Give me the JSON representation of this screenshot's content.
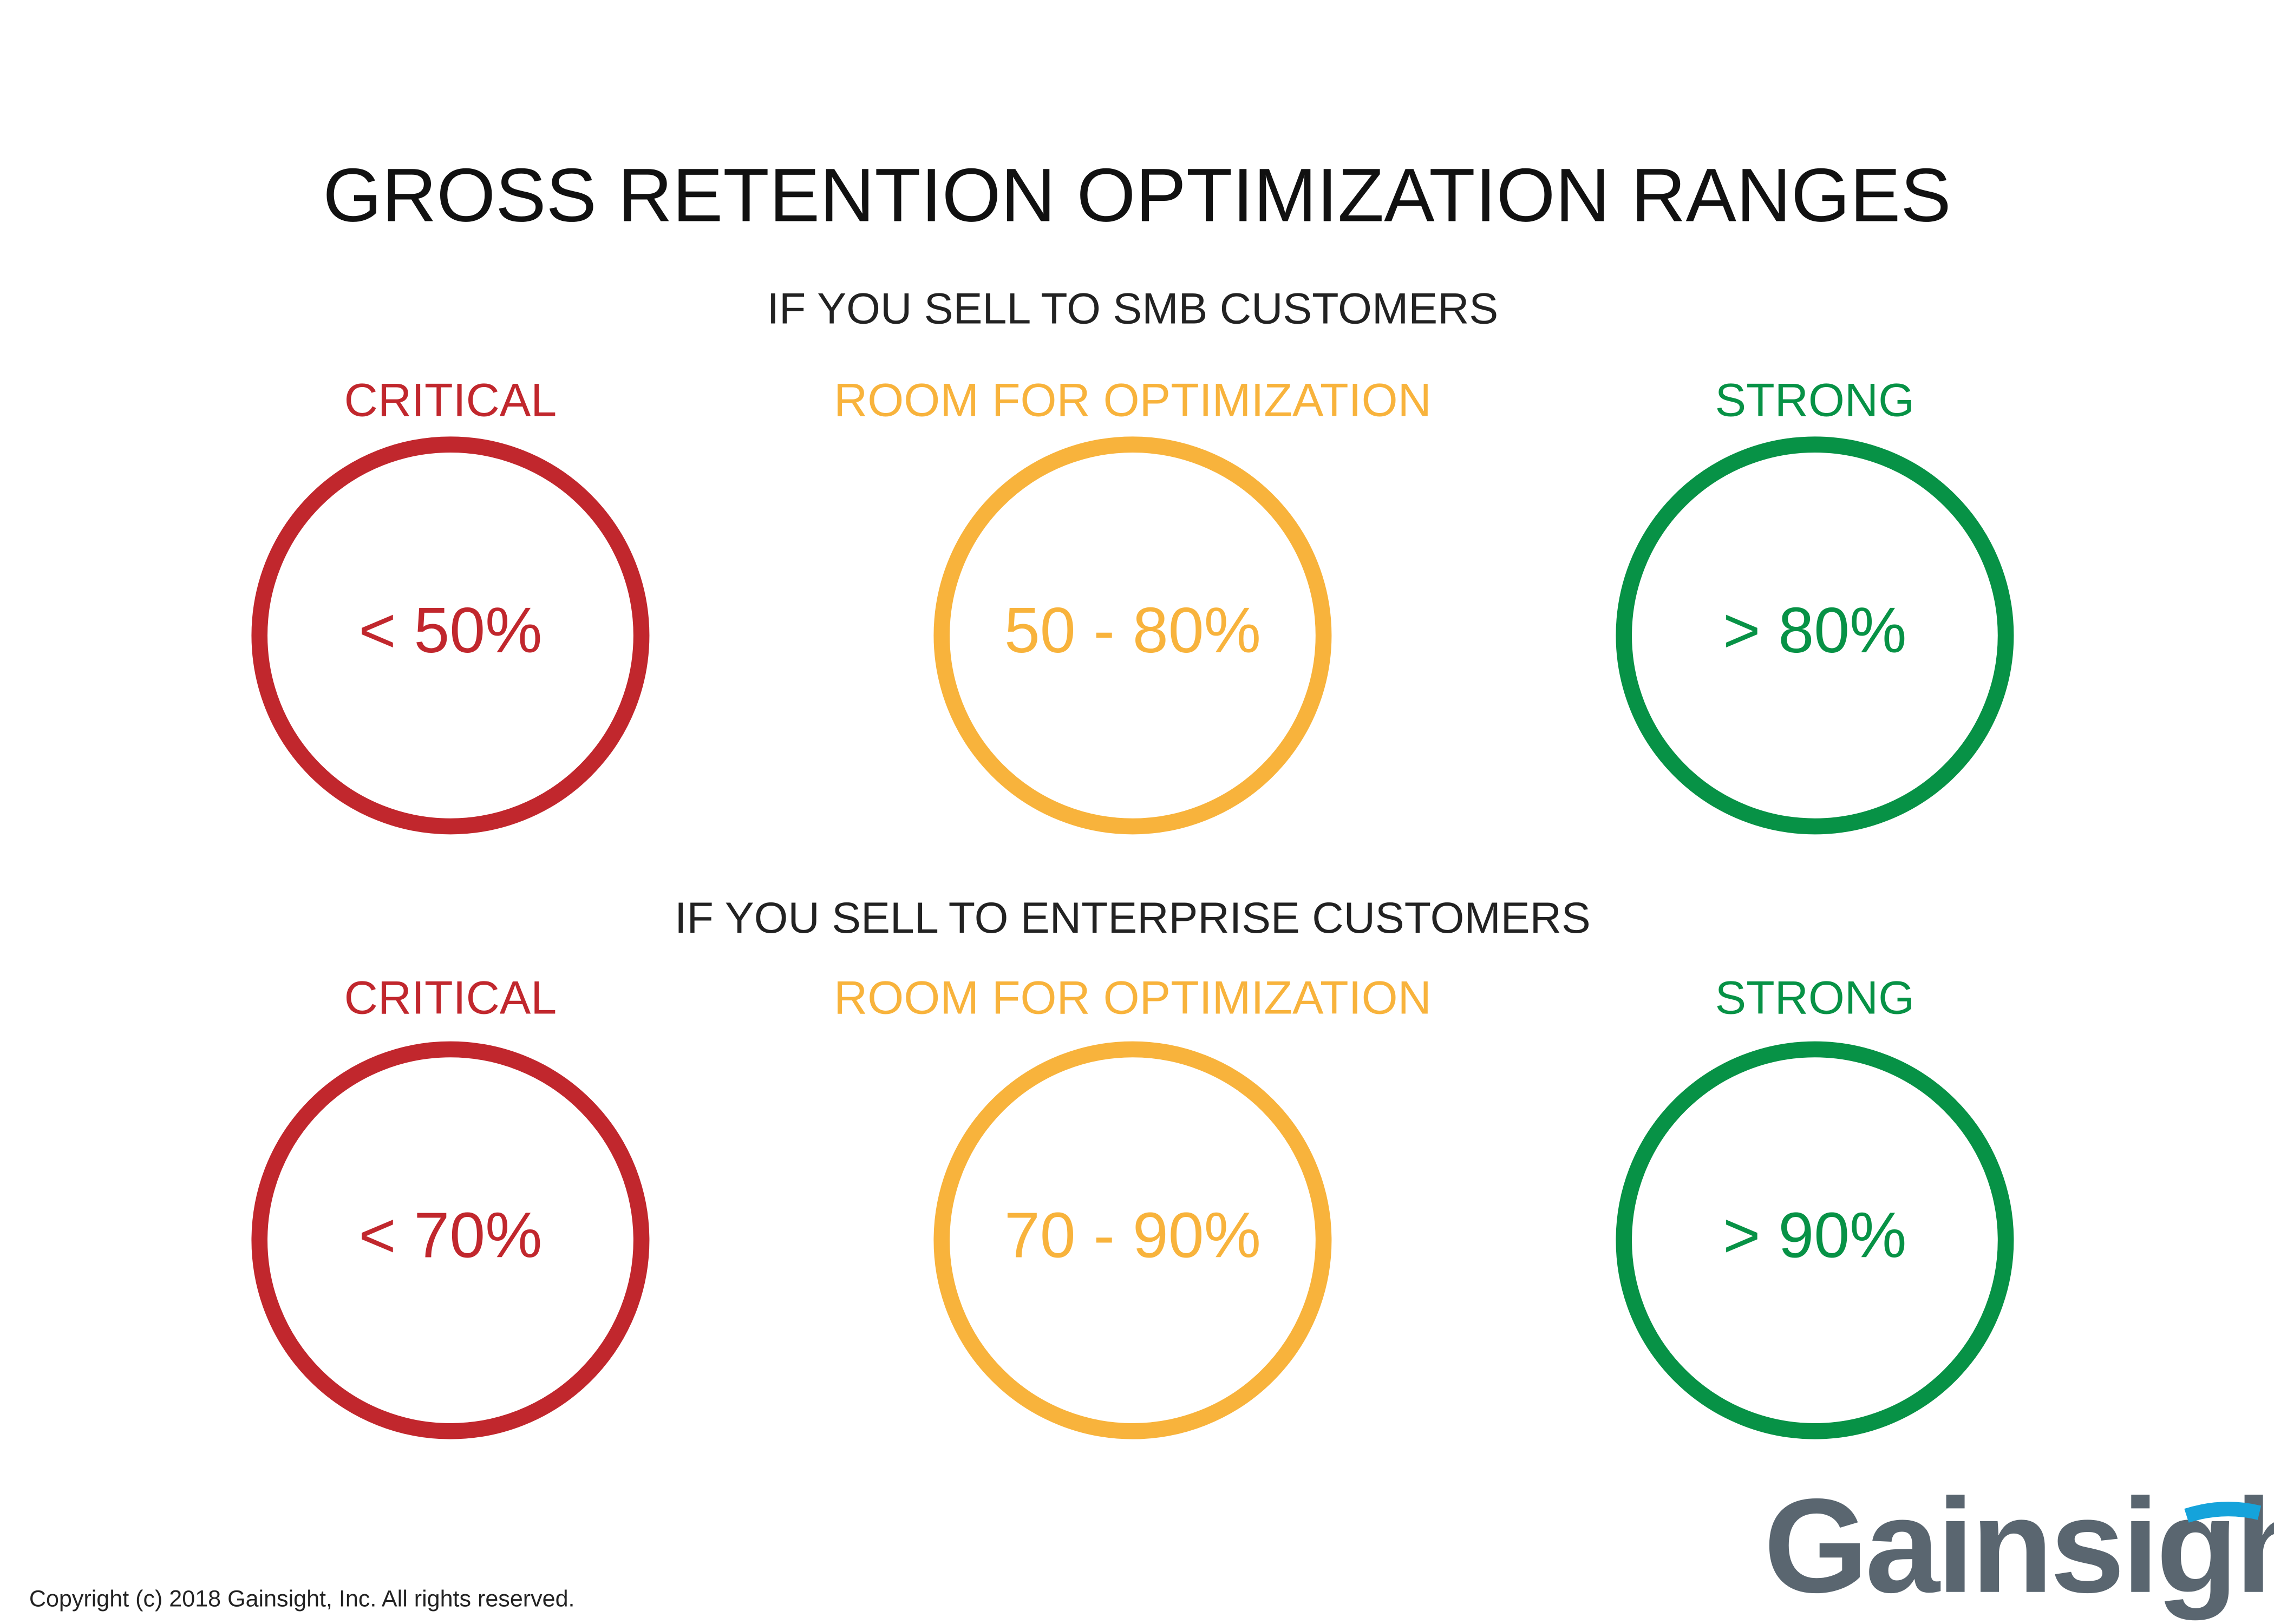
{
  "title": "GROSS RETENTION OPTIMIZATION RANGES",
  "sections": [
    {
      "subtitle": "IF YOU SELL TO SMB CUSTOMERS",
      "items": [
        {
          "label": "CRITICAL",
          "range": "< 50%",
          "color": "#c1272d"
        },
        {
          "label": "ROOM FOR OPTIMIZATION",
          "range": "50 - 80%",
          "color": "#f8b33c"
        },
        {
          "label": "STRONG",
          "range": "> 80%",
          "color": "#079246"
        }
      ]
    },
    {
      "subtitle": "IF YOU SELL TO ENTERPRISE CUSTOMERS",
      "items": [
        {
          "label": "CRITICAL",
          "range": "< 70%",
          "color": "#c1272d"
        },
        {
          "label": "ROOM FOR OPTIMIZATION",
          "range": "70 - 90%",
          "color": "#f8b33c"
        },
        {
          "label": "STRONG",
          "range": "> 90%",
          "color": "#079246"
        }
      ]
    }
  ],
  "logo": "Gainsight",
  "copyright": "Copyright (c) 2018 Gainsight, Inc. All rights reserved."
}
